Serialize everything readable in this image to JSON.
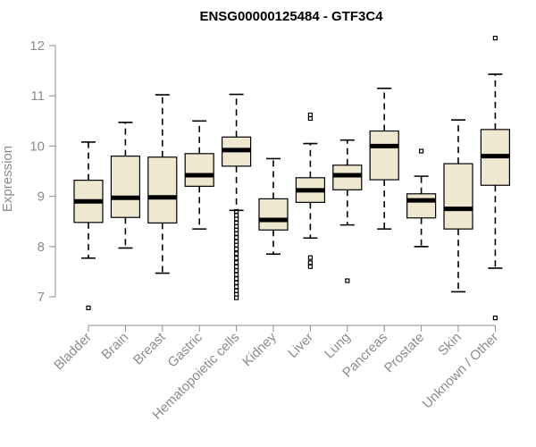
{
  "chart_data": {
    "type": "boxplot",
    "title": "ENSG00000125484 - GTF3C4",
    "xlabel": "",
    "ylabel": "Expression",
    "ylim": [
      6.6,
      12.3
    ],
    "yticks": [
      7,
      8,
      9,
      10,
      11,
      12
    ],
    "box_fill": "#efe8d0",
    "categories": [
      "Bladder",
      "Brain",
      "Breast",
      "Gastric",
      "Hematopoietic cells",
      "Kidney",
      "Liver",
      "Lung",
      "Pancreas",
      "Prostate",
      "Skin",
      "Unknown / Other"
    ],
    "boxes": [
      {
        "name": "Bladder",
        "whisker_low": 7.77,
        "q1": 8.48,
        "median": 8.9,
        "q3": 9.32,
        "whisker_high": 10.08,
        "outliers": [
          6.78
        ]
      },
      {
        "name": "Brain",
        "whisker_low": 7.97,
        "q1": 8.58,
        "median": 8.97,
        "q3": 9.8,
        "whisker_high": 10.47,
        "outliers": []
      },
      {
        "name": "Breast",
        "whisker_low": 7.47,
        "q1": 8.47,
        "median": 8.98,
        "q3": 9.78,
        "whisker_high": 11.02,
        "outliers": []
      },
      {
        "name": "Gastric",
        "whisker_low": 8.35,
        "q1": 9.2,
        "median": 9.42,
        "q3": 9.85,
        "whisker_high": 10.5,
        "outliers": []
      },
      {
        "name": "Hematopoietic cells",
        "whisker_low": 8.72,
        "q1": 9.6,
        "median": 9.92,
        "q3": 10.18,
        "whisker_high": 11.03,
        "outliers": [
          8.7,
          8.62,
          8.55,
          8.47,
          8.4,
          8.33,
          8.26,
          8.18,
          8.1,
          8.03,
          7.95,
          7.86,
          7.77,
          7.68,
          7.6,
          7.52,
          7.44,
          7.36,
          7.28,
          7.2,
          7.12,
          7.05,
          6.98
        ]
      },
      {
        "name": "Kidney",
        "whisker_low": 7.85,
        "q1": 8.33,
        "median": 8.53,
        "q3": 8.95,
        "whisker_high": 9.75,
        "outliers": []
      },
      {
        "name": "Liver",
        "whisker_low": 8.17,
        "q1": 8.88,
        "median": 9.12,
        "q3": 9.37,
        "whisker_high": 10.05,
        "outliers": [
          10.62,
          10.55,
          7.78,
          7.68,
          7.6
        ]
      },
      {
        "name": "Lung",
        "whisker_low": 8.43,
        "q1": 9.13,
        "median": 9.42,
        "q3": 9.62,
        "whisker_high": 10.12,
        "outliers": [
          7.32
        ]
      },
      {
        "name": "Pancreas",
        "whisker_low": 8.35,
        "q1": 9.33,
        "median": 10.0,
        "q3": 10.3,
        "whisker_high": 11.15,
        "outliers": []
      },
      {
        "name": "Prostate",
        "whisker_low": 8.0,
        "q1": 8.57,
        "median": 8.92,
        "q3": 9.05,
        "whisker_high": 9.4,
        "outliers": [
          9.9
        ]
      },
      {
        "name": "Skin",
        "whisker_low": 7.1,
        "q1": 8.35,
        "median": 8.75,
        "q3": 9.65,
        "whisker_high": 10.52,
        "outliers": []
      },
      {
        "name": "Unknown / Other",
        "whisker_low": 7.57,
        "q1": 9.22,
        "median": 9.8,
        "q3": 10.33,
        "whisker_high": 11.43,
        "outliers": [
          12.15,
          6.58
        ]
      }
    ]
  }
}
